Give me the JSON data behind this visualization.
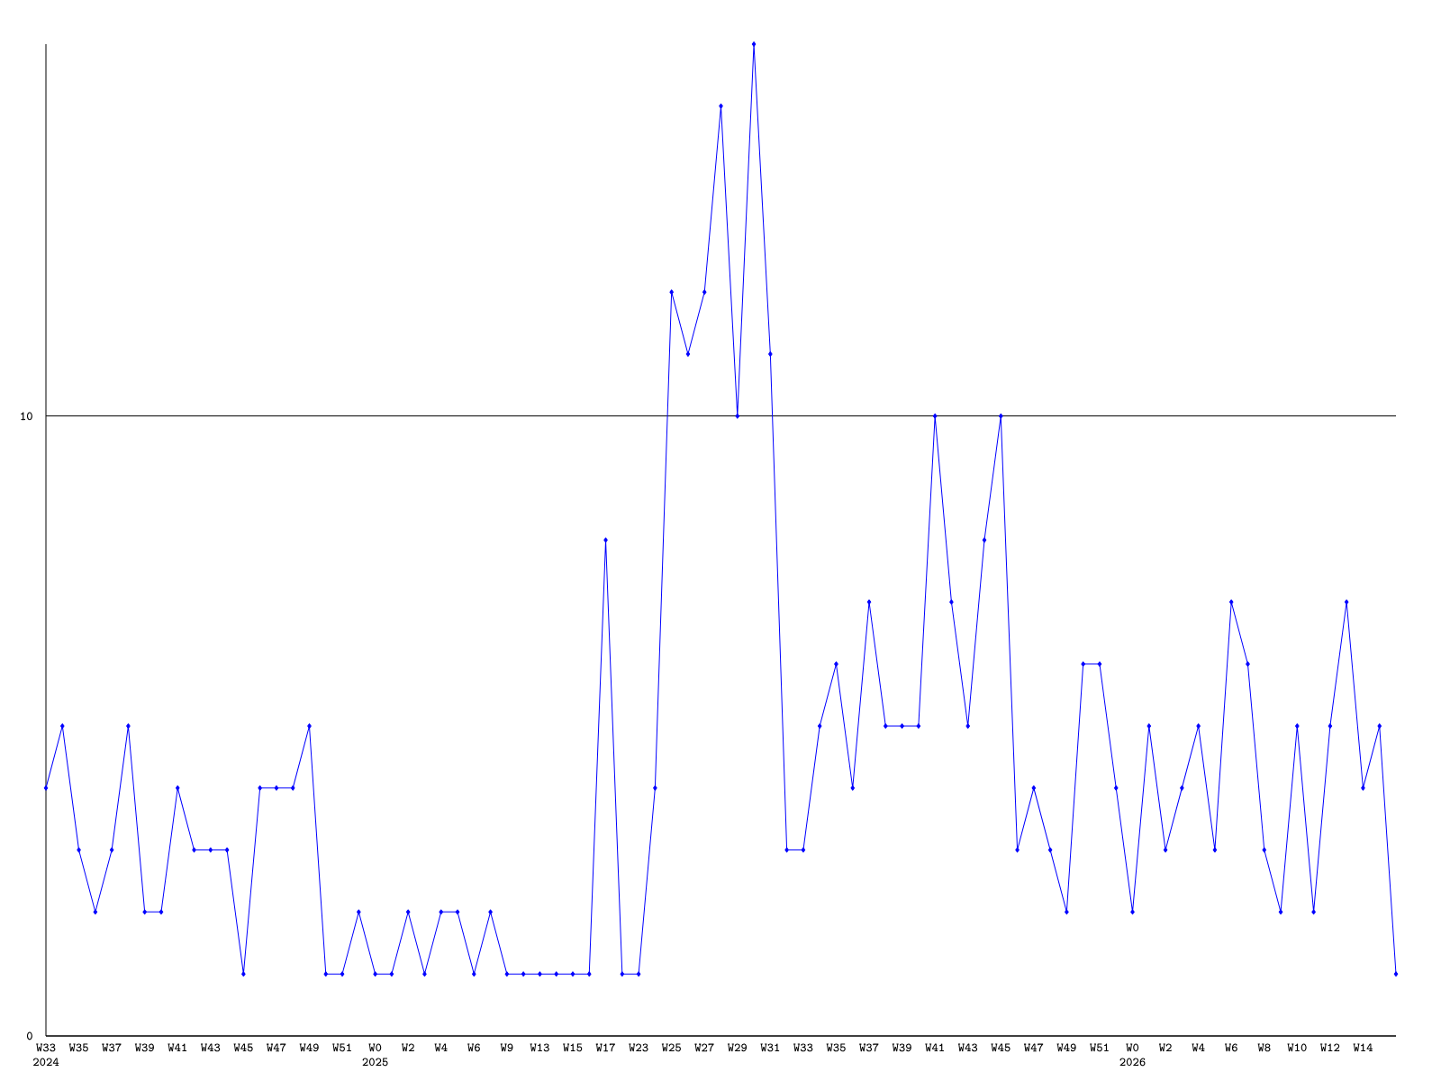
{
  "chart_data": {
    "type": "line",
    "categories": [
      "W33 2024",
      null,
      "W35",
      null,
      "W37",
      null,
      "W39",
      null,
      "W41",
      null,
      "W43",
      null,
      "W45",
      null,
      "W47",
      null,
      "W49",
      null,
      "W51",
      null,
      "W0 2025",
      null,
      "W2",
      null,
      "W4",
      null,
      "W6",
      null,
      "W9",
      null,
      "W13",
      null,
      "W15",
      null,
      "W17",
      null,
      "W23",
      null,
      "W25",
      null,
      "W27",
      null,
      "W29",
      null,
      "W31",
      null,
      "W33",
      null,
      "W35",
      null,
      "W37",
      null,
      "W39",
      null,
      "W41",
      null,
      "W43",
      null,
      "W45",
      null,
      "W47",
      null,
      "W49",
      null,
      "W51",
      null,
      "W0 2026",
      null,
      "W2",
      null,
      "W4",
      null,
      "W6",
      null,
      "W8",
      null,
      "W10",
      null,
      "W12",
      null,
      "W14",
      null,
      null
    ],
    "values": [
      4,
      5,
      3,
      2,
      3,
      5,
      2,
      2,
      4,
      3,
      3,
      3,
      1,
      4,
      4,
      4,
      5,
      1,
      1,
      2,
      1,
      1,
      2,
      1,
      2,
      2,
      1,
      2,
      1,
      1,
      1,
      1,
      1,
      1,
      8,
      1,
      1,
      4,
      12,
      11,
      12,
      15,
      10,
      16,
      11,
      3,
      3,
      5,
      6,
      4,
      7,
      5,
      5,
      5,
      10,
      7,
      5,
      8,
      10,
      3,
      4,
      3,
      2,
      6,
      6,
      4,
      2,
      5,
      3,
      4,
      5,
      3,
      7,
      6,
      3,
      2,
      5,
      2,
      5,
      7,
      4,
      5,
      1
    ],
    "color": "#0000ff",
    "marker": "diamond",
    "ylim": [
      0,
      16
    ],
    "yticks": [
      0,
      10
    ],
    "grid": "y"
  }
}
